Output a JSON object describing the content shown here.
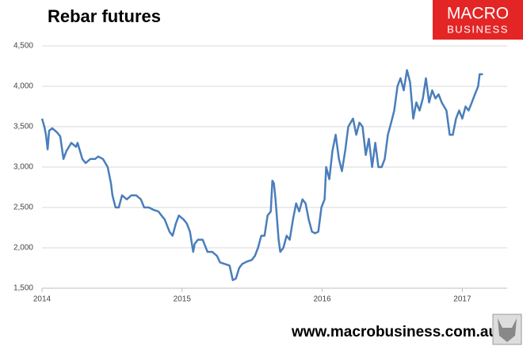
{
  "chart_data": {
    "type": "line",
    "title": "Rebar futures",
    "x": [
      2014.0,
      2014.017,
      2014.028,
      2014.04,
      2014.051,
      2014.073,
      2014.107,
      2014.13,
      2014.153,
      2014.175,
      2014.209,
      2014.243,
      2014.254,
      2014.288,
      2014.311,
      2014.345,
      2014.379,
      2014.401,
      2014.435,
      2014.469,
      2014.492,
      2014.503,
      2014.525,
      2014.548,
      2014.571,
      2014.605,
      2014.638,
      2014.672,
      2014.706,
      2014.729,
      2014.763,
      2014.797,
      2014.831,
      2014.853,
      2014.876,
      2014.91,
      2014.932,
      2014.955,
      2014.977,
      2015.011,
      2015.034,
      2015.056,
      2015.079,
      2015.09,
      2015.113,
      2015.147,
      2015.181,
      2015.215,
      2015.249,
      2015.271,
      2015.305,
      2015.339,
      2015.362,
      2015.384,
      2015.407,
      2015.429,
      2015.463,
      2015.497,
      2015.52,
      2015.542,
      2015.565,
      2015.588,
      2015.61,
      2015.633,
      2015.644,
      2015.655,
      2015.667,
      2015.689,
      2015.701,
      2015.723,
      2015.746,
      2015.768,
      2015.791,
      2015.814,
      2015.836,
      2015.859,
      2015.881,
      2015.904,
      2015.927,
      2015.949,
      2015.972,
      2015.994,
      2016.017,
      2016.028,
      2016.051,
      2016.073,
      2016.096,
      2016.119,
      2016.141,
      2016.164,
      2016.186,
      2016.22,
      2016.243,
      2016.266,
      2016.288,
      2016.311,
      2016.333,
      2016.356,
      2016.379,
      2016.401,
      2016.424,
      2016.446,
      2016.469,
      2016.492,
      2016.514,
      2016.537,
      2016.559,
      2016.582,
      2016.605,
      2016.627,
      2016.65,
      2016.672,
      2016.695,
      2016.718,
      2016.74,
      2016.763,
      2016.785,
      2016.808,
      2016.831,
      2016.853,
      2016.887,
      2016.91,
      2016.932,
      2016.955,
      2016.977,
      2017.0,
      2017.023,
      2017.045,
      2017.068,
      2017.09,
      2017.113,
      2017.124,
      2017.147
    ],
    "values": [
      3600,
      3500,
      3400,
      3220,
      3450,
      3480,
      3430,
      3380,
      3100,
      3200,
      3300,
      3250,
      3300,
      3100,
      3050,
      3100,
      3100,
      3130,
      3100,
      3000,
      2800,
      2650,
      2500,
      2500,
      2650,
      2600,
      2650,
      2650,
      2600,
      2500,
      2500,
      2470,
      2450,
      2400,
      2350,
      2200,
      2150,
      2300,
      2400,
      2350,
      2300,
      2200,
      1950,
      2050,
      2100,
      2100,
      1950,
      1950,
      1900,
      1820,
      1800,
      1780,
      1600,
      1620,
      1750,
      1800,
      1830,
      1850,
      1900,
      2000,
      2150,
      2150,
      2400,
      2450,
      2830,
      2800,
      2600,
      2100,
      1950,
      2000,
      2150,
      2100,
      2350,
      2550,
      2450,
      2600,
      2550,
      2350,
      2200,
      2180,
      2200,
      2500,
      2600,
      3000,
      2850,
      3200,
      3400,
      3100,
      2950,
      3200,
      3500,
      3600,
      3400,
      3550,
      3500,
      3150,
      3350,
      3000,
      3300,
      3000,
      3000,
      3100,
      3400,
      3550,
      3700,
      4000,
      4100,
      3950,
      4200,
      4050,
      3600,
      3800,
      3700,
      3850,
      4100,
      3800,
      3950,
      3850,
      3900,
      3800,
      3700,
      3400,
      3400,
      3600,
      3700,
      3600,
      3750,
      3700,
      3800,
      3900,
      4000,
      4150,
      4150
    ],
    "color": "#4a7ebb",
    "xlim": [
      2014,
      2017.32
    ],
    "xticks": [
      2014,
      2015,
      2016,
      2017
    ],
    "ylim": [
      1500,
      4500
    ],
    "yticks": [
      {
        "value": 1500,
        "label": "1,500"
      },
      {
        "value": 2000,
        "label": "2,000"
      },
      {
        "value": 2500,
        "label": "2,500"
      },
      {
        "value": 3000,
        "label": "3,000"
      },
      {
        "value": 3500,
        "label": "3,500"
      },
      {
        "value": 4000,
        "label": "4,000"
      },
      {
        "value": 4500,
        "label": "4,500"
      }
    ],
    "grid": true
  },
  "logo": {
    "line1": "MACRO",
    "line2": "BUSINESS"
  },
  "footer": "www.macrobusiness.com.au"
}
